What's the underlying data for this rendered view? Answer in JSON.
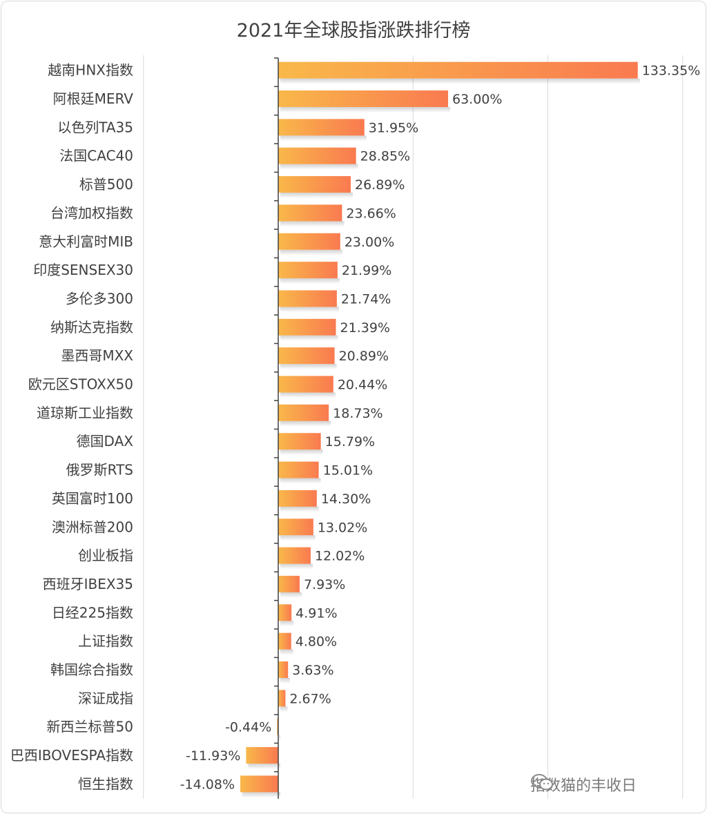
{
  "chart_data": {
    "type": "bar",
    "orientation": "horizontal",
    "title": "2021年全球股指涨跌排行榜",
    "categories": [
      "越南HNX指数",
      "阿根廷MERV",
      "以色列TA35",
      "法国CAC40",
      "标普500",
      "台湾加权指数",
      "意大利富时MIB",
      "印度SENSEX30",
      "多伦多300",
      "纳斯达克指数",
      "墨西哥MXX",
      "欧元区STOXX50",
      "道琼斯工业指数",
      "德国DAX",
      "俄罗斯RTS",
      "英国富时100",
      "澳洲标普200",
      "创业板指",
      "西班牙IBEX35",
      "日经225指数",
      "上证指数",
      "韩国综合指数",
      "深证成指",
      "新西兰标普50",
      "巴西IBOVESPA指数",
      "恒生指数"
    ],
    "values": [
      133.35,
      63.0,
      31.95,
      28.85,
      26.89,
      23.66,
      23.0,
      21.99,
      21.74,
      21.39,
      20.89,
      20.44,
      18.73,
      15.79,
      15.01,
      14.3,
      13.02,
      12.02,
      7.93,
      4.91,
      4.8,
      3.63,
      2.67,
      -0.44,
      -11.93,
      -14.08
    ],
    "labels": [
      "133.35%",
      "63.00%",
      "31.95%",
      "28.85%",
      "26.89%",
      "23.66%",
      "23.00%",
      "21.99%",
      "21.74%",
      "21.39%",
      "20.89%",
      "20.44%",
      "18.73%",
      "15.79%",
      "15.01%",
      "14.30%",
      "13.02%",
      "12.02%",
      "7.93%",
      "4.91%",
      "4.80%",
      "3.63%",
      "2.67%",
      "-0.44%",
      "-11.93%",
      "-14.08%"
    ],
    "xlim": [
      -50,
      150
    ],
    "grid": true,
    "bar_gradient": [
      "#f9b84a",
      "#f97a50"
    ]
  },
  "watermark": {
    "text": "指数猫的丰收日",
    "icon": "wechat-icon"
  }
}
